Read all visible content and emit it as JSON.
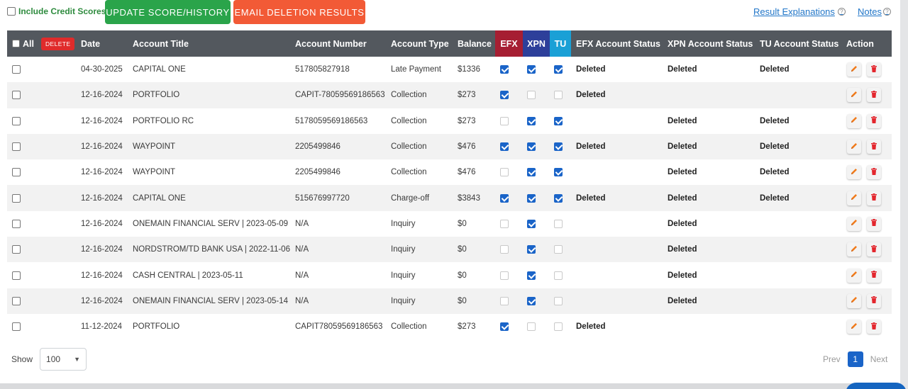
{
  "toolbar": {
    "include_credit_scores": "Include Credit Scores",
    "update_button": "UPDATE SCORE/HISTORY",
    "email_button": "EMAIL DELETION RESULTS",
    "result_explanations": "Result Explanations",
    "notes": "Notes",
    "help_glyph": "?"
  },
  "colors": {
    "green": "#2aa44a",
    "orange": "#f25a36",
    "efx": "#a61e32",
    "xpn": "#2d3f9a",
    "tu": "#1aa0d6",
    "header": "#53585e",
    "link": "#2176c8"
  },
  "table": {
    "header": {
      "all": "All",
      "delete": "DELETE",
      "date": "Date",
      "account_title": "Account Title",
      "account_number": "Account Number",
      "account_type": "Account Type",
      "balance": "Balance",
      "efx": "EFX",
      "xpn": "XPN",
      "tu": "TU",
      "efx_status": "EFX Account Status",
      "xpn_status": "XPN Account Status",
      "tu_status": "TU Account Status",
      "action": "Action"
    },
    "rows": [
      {
        "date": "04-30-2025",
        "title": "CAPITAL ONE",
        "number": "517805827918",
        "type": "Late Payment",
        "balance": "$1336",
        "efx": true,
        "xpn": true,
        "tu": true,
        "efx_status": "Deleted",
        "xpn_status": "Deleted",
        "tu_status": "Deleted"
      },
      {
        "date": "12-16-2024",
        "title": "PORTFOLIO",
        "number": "CAPIT-78059569186563",
        "type": "Collection",
        "balance": "$273",
        "efx": true,
        "xpn": false,
        "tu": false,
        "efx_status": "Deleted",
        "xpn_status": "",
        "tu_status": ""
      },
      {
        "date": "12-16-2024",
        "title": "PORTFOLIO RC",
        "number": "5178059569186563",
        "type": "Collection",
        "balance": "$273",
        "efx": false,
        "xpn": true,
        "tu": true,
        "efx_status": "",
        "xpn_status": "Deleted",
        "tu_status": "Deleted"
      },
      {
        "date": "12-16-2024",
        "title": "WAYPOINT",
        "number": "2205499846",
        "type": "Collection",
        "balance": "$476",
        "efx": true,
        "xpn": true,
        "tu": true,
        "efx_status": "Deleted",
        "xpn_status": "Deleted",
        "tu_status": "Deleted"
      },
      {
        "date": "12-16-2024",
        "title": "WAYPOINT",
        "number": "2205499846",
        "type": "Collection",
        "balance": "$476",
        "efx": false,
        "xpn": true,
        "tu": true,
        "efx_status": "",
        "xpn_status": "Deleted",
        "tu_status": "Deleted"
      },
      {
        "date": "12-16-2024",
        "title": "CAPITAL ONE",
        "number": "515676997720",
        "type": "Charge-off",
        "balance": "$3843",
        "efx": true,
        "xpn": true,
        "tu": true,
        "efx_status": "Deleted",
        "xpn_status": "Deleted",
        "tu_status": "Deleted"
      },
      {
        "date": "12-16-2024",
        "title": "ONEMAIN FINANCIAL SERV | 2023-05-09",
        "number": "N/A",
        "type": "Inquiry",
        "balance": "$0",
        "efx": false,
        "xpn": true,
        "tu": false,
        "efx_status": "",
        "xpn_status": "Deleted",
        "tu_status": ""
      },
      {
        "date": "12-16-2024",
        "title": "NORDSTROM/TD BANK USA | 2022-11-06",
        "number": "N/A",
        "type": "Inquiry",
        "balance": "$0",
        "efx": false,
        "xpn": true,
        "tu": false,
        "efx_status": "",
        "xpn_status": "Deleted",
        "tu_status": ""
      },
      {
        "date": "12-16-2024",
        "title": "CASH CENTRAL | 2023-05-11",
        "number": "N/A",
        "type": "Inquiry",
        "balance": "$0",
        "efx": false,
        "xpn": true,
        "tu": false,
        "efx_status": "",
        "xpn_status": "Deleted",
        "tu_status": ""
      },
      {
        "date": "12-16-2024",
        "title": "ONEMAIN FINANCIAL SERV | 2023-05-14",
        "number": "N/A",
        "type": "Inquiry",
        "balance": "$0",
        "efx": false,
        "xpn": true,
        "tu": false,
        "efx_status": "",
        "xpn_status": "Deleted",
        "tu_status": ""
      },
      {
        "date": "11-12-2024",
        "title": "PORTFOLIO",
        "number": "CAPIT78059569186563",
        "type": "Collection",
        "balance": "$273",
        "efx": true,
        "xpn": false,
        "tu": false,
        "efx_status": "Deleted",
        "xpn_status": "",
        "tu_status": ""
      }
    ]
  },
  "footer": {
    "show_label": "Show",
    "page_size": "100",
    "caret": "▼",
    "prev": "Prev",
    "current_page": "1",
    "next": "Next"
  }
}
